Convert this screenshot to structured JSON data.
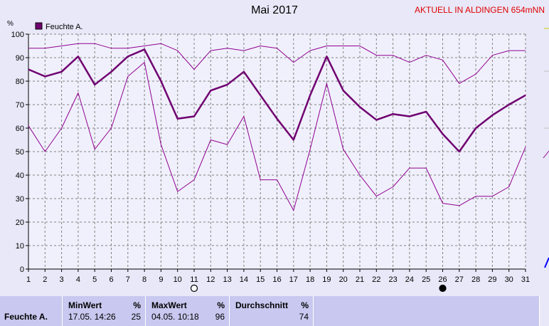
{
  "title": "Mai 2017",
  "location": "AKTUELL IN ALDINGEN 654mNN",
  "chart_data": {
    "type": "line",
    "ylabel": "%",
    "ylim": [
      0,
      100
    ],
    "yticks": [
      0,
      10,
      20,
      30,
      40,
      50,
      60,
      70,
      80,
      90,
      100
    ],
    "x": [
      1,
      2,
      3,
      4,
      5,
      6,
      7,
      8,
      9,
      10,
      11,
      12,
      13,
      14,
      15,
      16,
      17,
      18,
      19,
      20,
      21,
      22,
      23,
      24,
      25,
      26,
      27,
      28,
      29,
      30,
      31
    ],
    "grid": true,
    "legend": "top-left",
    "legend_label": "Feuchte A.",
    "moon_markers": [
      {
        "day": 11,
        "phase": "full-moon"
      },
      {
        "day": 26,
        "phase": "new-moon"
      }
    ],
    "series": [
      {
        "role": "max",
        "values": [
          94,
          94,
          95,
          96,
          96,
          94,
          94,
          95,
          96,
          93,
          85,
          93,
          94,
          93,
          95,
          94,
          88,
          93,
          95,
          95,
          95,
          91,
          91,
          88,
          91,
          89,
          79,
          83,
          91,
          93,
          93
        ]
      },
      {
        "role": "avg",
        "values": [
          85,
          82,
          84,
          90.5,
          78.5,
          84,
          90.5,
          93.5,
          80,
          64,
          65,
          76,
          78.5,
          84,
          74,
          64,
          55,
          74,
          90.5,
          76,
          69,
          63.5,
          66,
          65,
          67,
          57.5,
          50,
          60,
          65.5,
          70,
          74
        ]
      },
      {
        "role": "min",
        "values": [
          61,
          50,
          60,
          75,
          51,
          60,
          82,
          88,
          53,
          33,
          38,
          55,
          53,
          65,
          38,
          38,
          25,
          51,
          79,
          51,
          40,
          31,
          35,
          43,
          43,
          28,
          27,
          31,
          31,
          35,
          52
        ]
      }
    ],
    "colors": {
      "avg": "#700070",
      "band": "#900090",
      "grid": "#808080"
    }
  },
  "stats": {
    "label": "Feuchte A.",
    "min": {
      "title": "MinWert",
      "unit": "%",
      "date": "17.05.  14:26",
      "value": "25"
    },
    "max": {
      "title": "MaxWert",
      "unit": "%",
      "date": "04.05.  10:18",
      "value": "96"
    },
    "avg": {
      "title": "Durchschnitt",
      "unit": "%",
      "value": "74"
    }
  }
}
